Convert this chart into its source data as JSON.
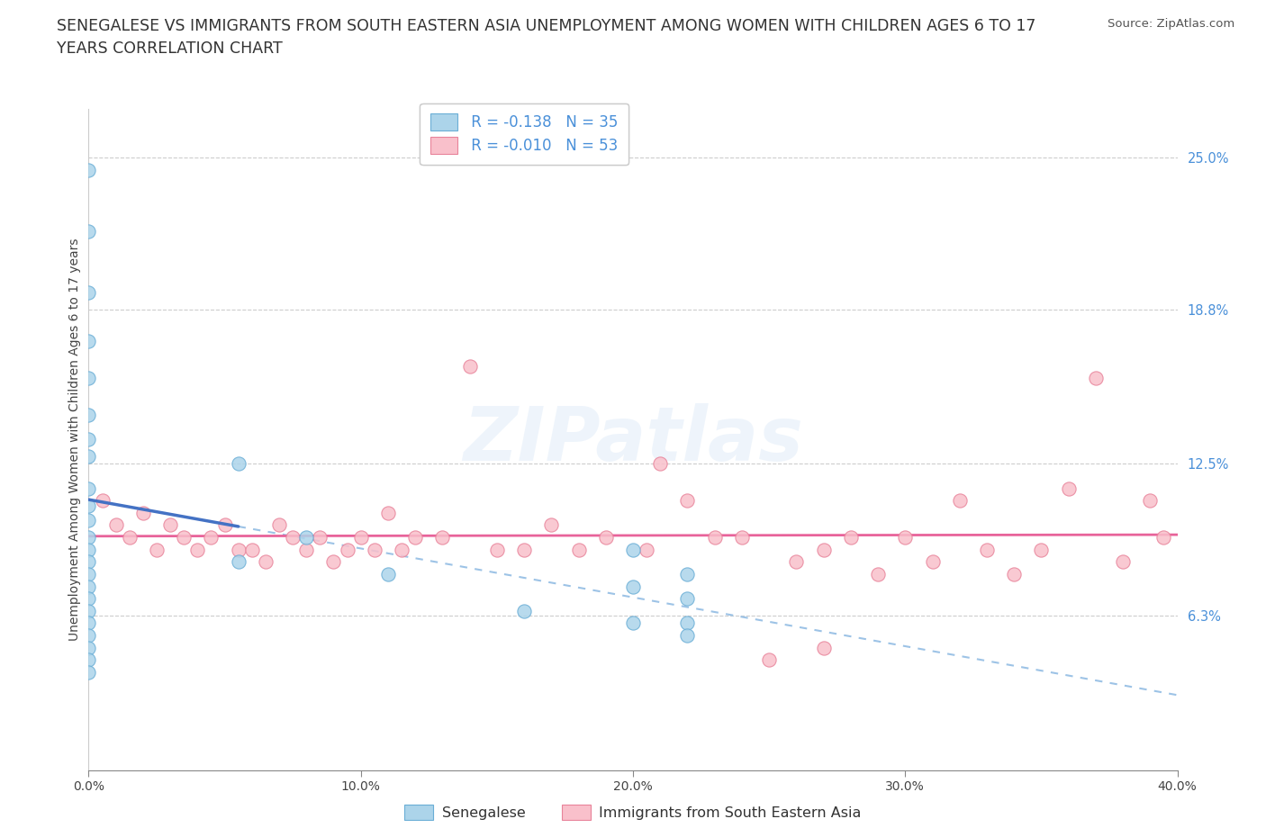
{
  "title_line1": "SENEGALESE VS IMMIGRANTS FROM SOUTH EASTERN ASIA UNEMPLOYMENT AMONG WOMEN WITH CHILDREN AGES 6 TO 17",
  "title_line2": "YEARS CORRELATION CHART",
  "source": "Source: ZipAtlas.com",
  "xlim": [
    0.0,
    40.0
  ],
  "ylim": [
    0.0,
    27.0
  ],
  "xlabel_vals": [
    0.0,
    10.0,
    20.0,
    30.0,
    40.0
  ],
  "xlabel_ticks": [
    "0.0%",
    "10.0%",
    "20.0%",
    "30.0%",
    "40.0%"
  ],
  "ylabel_vals_right": [
    6.3,
    12.5,
    18.8,
    25.0
  ],
  "ylabel_ticks_right": [
    "6.3%",
    "12.5%",
    "18.8%",
    "25.0%"
  ],
  "senegalese_color": "#acd4ea",
  "senegalese_edge": "#6aaed6",
  "immigrants_color": "#f9c0cb",
  "immigrants_edge": "#e8839a",
  "trend_sen_color": "#4472c4",
  "trend_sen_dash_color": "#9dc3e6",
  "trend_imm_color": "#e8639a",
  "R1": "-0.138",
  "N1": "35",
  "R2": "-0.010",
  "N2": "53",
  "label1": "Senegalese",
  "label2": "Immigrants from South Eastern Asia",
  "watermark": "ZIPatlas",
  "watermark_color": "#4a90d9",
  "watermark_alpha": 0.09,
  "sen_x": [
    0.0,
    0.0,
    0.0,
    0.0,
    0.0,
    0.0,
    0.0,
    0.0,
    0.0,
    0.0,
    0.0,
    0.0,
    0.0,
    0.0,
    0.0,
    0.0,
    0.0,
    0.0,
    0.0,
    0.0,
    0.0,
    0.0,
    0.0,
    5.5,
    5.5,
    8.0,
    11.0,
    16.0,
    20.0,
    20.0,
    20.0,
    22.0,
    22.0,
    22.0,
    22.0
  ],
  "sen_y": [
    24.5,
    22.0,
    19.5,
    17.5,
    16.0,
    14.5,
    13.5,
    12.8,
    11.5,
    10.8,
    10.2,
    9.5,
    9.0,
    8.5,
    8.0,
    7.5,
    7.0,
    6.5,
    6.0,
    5.5,
    5.0,
    4.5,
    4.0,
    12.5,
    8.5,
    9.5,
    8.0,
    6.5,
    9.0,
    7.5,
    6.0,
    8.0,
    7.0,
    6.0,
    5.5
  ],
  "imm_x": [
    0.5,
    1.0,
    1.5,
    2.0,
    2.5,
    3.0,
    3.5,
    4.0,
    4.5,
    5.0,
    5.5,
    6.0,
    6.5,
    7.0,
    7.5,
    8.0,
    8.5,
    9.0,
    9.5,
    10.0,
    10.5,
    11.0,
    11.5,
    12.0,
    13.0,
    14.0,
    15.0,
    16.0,
    17.0,
    18.0,
    19.0,
    20.5,
    21.0,
    22.0,
    23.0,
    24.0,
    25.0,
    26.0,
    27.0,
    27.0,
    28.0,
    29.0,
    30.0,
    31.0,
    32.0,
    33.0,
    34.0,
    35.0,
    36.0,
    37.0,
    38.0,
    39.0,
    39.5
  ],
  "imm_y": [
    11.0,
    10.0,
    9.5,
    10.5,
    9.0,
    10.0,
    9.5,
    9.0,
    9.5,
    10.0,
    9.0,
    9.0,
    8.5,
    10.0,
    9.5,
    9.0,
    9.5,
    8.5,
    9.0,
    9.5,
    9.0,
    10.5,
    9.0,
    9.5,
    9.5,
    16.5,
    9.0,
    9.0,
    10.0,
    9.0,
    9.5,
    9.0,
    12.5,
    11.0,
    9.5,
    9.5,
    4.5,
    8.5,
    9.0,
    5.0,
    9.5,
    8.0,
    9.5,
    8.5,
    11.0,
    9.0,
    8.0,
    9.0,
    11.5,
    16.0,
    8.5,
    11.0,
    9.5
  ]
}
